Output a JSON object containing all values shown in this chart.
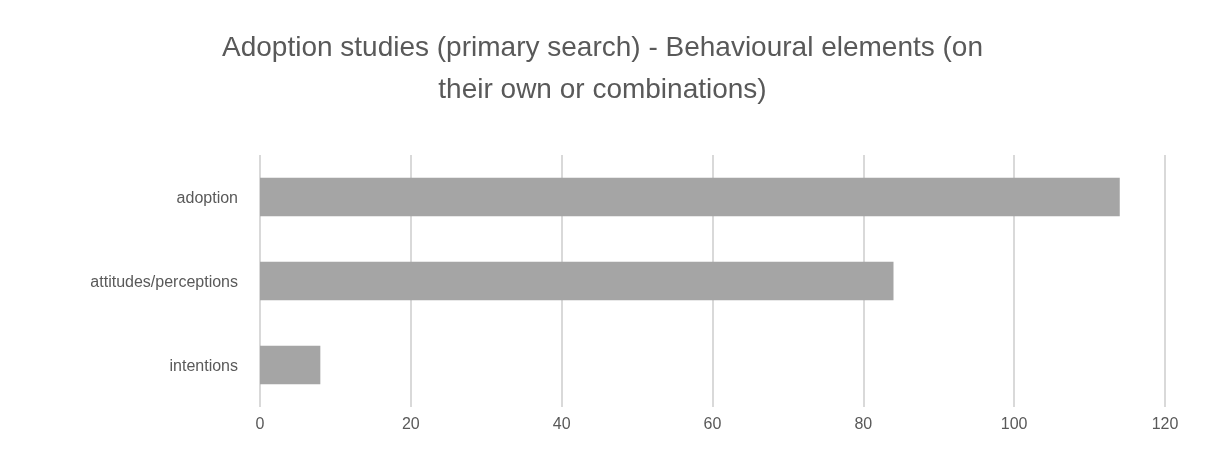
{
  "chart_data": {
    "type": "bar",
    "orientation": "horizontal",
    "title": "Adoption studies (primary search) - Behavioural elements (on\ntheir own or combinations)",
    "categories": [
      "adoption",
      "attitudes/perceptions",
      "intentions"
    ],
    "values": [
      114,
      84,
      8
    ],
    "color": "#a5a5a5",
    "xlim": [
      0,
      120
    ],
    "xticks": [
      0,
      20,
      40,
      60,
      80,
      100,
      120
    ],
    "grid": "x"
  }
}
